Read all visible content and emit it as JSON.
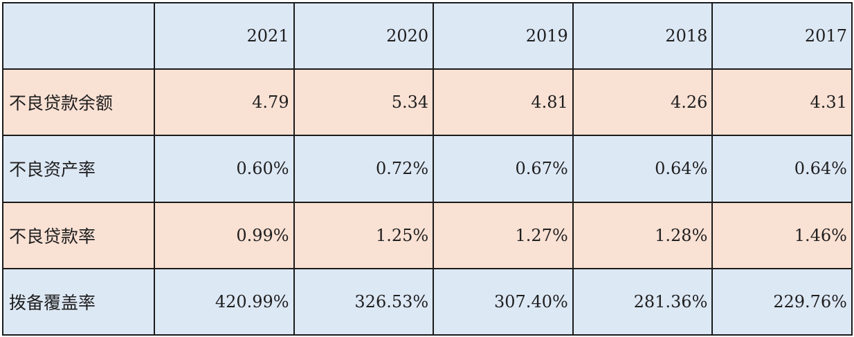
{
  "colors": {
    "blue_row": "#dde8f5",
    "peach_row": "#f9e1d4",
    "border": "#1a1a1a",
    "text": "#1f1f1f"
  },
  "table": {
    "corner": "",
    "years": [
      "2021",
      "2020",
      "2019",
      "2018",
      "2017"
    ],
    "rows": [
      {
        "label": "不良贷款余额",
        "values": [
          "4.79",
          "5.34",
          "4.81",
          "4.26",
          "4.31"
        ],
        "style": "peach"
      },
      {
        "label": "不良资产率",
        "values": [
          "0.60%",
          "0.72%",
          "0.67%",
          "0.64%",
          "0.64%"
        ],
        "style": "blue"
      },
      {
        "label": "不良贷款率",
        "values": [
          "0.99%",
          "1.25%",
          "1.27%",
          "1.28%",
          "1.46%"
        ],
        "style": "peach"
      },
      {
        "label": "拨备覆盖率",
        "values": [
          "420.99%",
          "326.53%",
          "307.40%",
          "281.36%",
          "229.76%"
        ],
        "style": "blue"
      }
    ]
  }
}
